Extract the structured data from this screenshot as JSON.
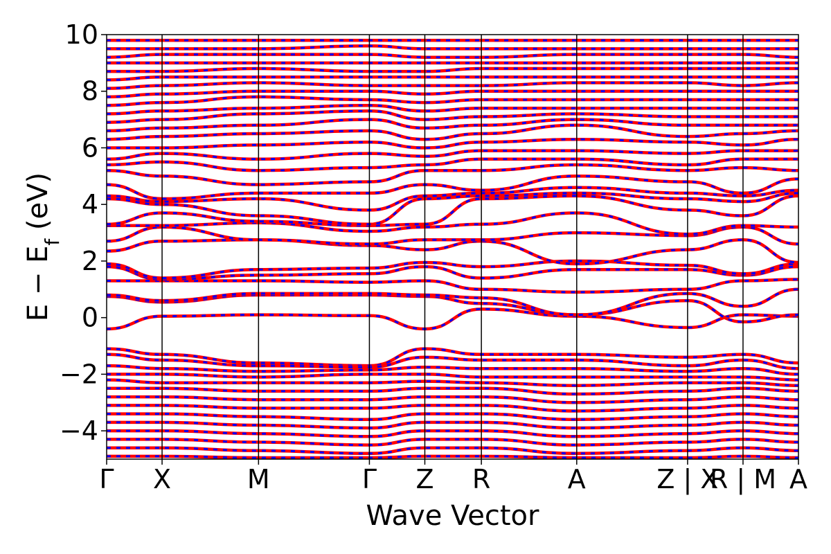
{
  "chart_data": {
    "type": "line",
    "title": "",
    "xlabel": "Wave Vector",
    "ylabel_parts": {
      "main": "E − E",
      "sub": "f",
      "tail": " (eV)"
    },
    "ylim": [
      -5,
      10
    ],
    "yticks": [
      -4,
      -2,
      0,
      2,
      4,
      6,
      8,
      10
    ],
    "ytick_labels": [
      "−4",
      "−2",
      "0",
      "2",
      "4",
      "6",
      "8",
      "10"
    ],
    "kpoints": [
      {
        "label": "Γ",
        "x": 0.0
      },
      {
        "label": "X",
        "x": 0.5
      },
      {
        "label": "M",
        "x": 1.37
      },
      {
        "label": "Γ",
        "x": 2.37
      },
      {
        "label": "Z",
        "x": 2.87
      },
      {
        "label": "R",
        "x": 3.38
      },
      {
        "label": "A",
        "x": 4.24
      },
      {
        "label": "Z | X",
        "x": 5.24
      },
      {
        "label": "R | M",
        "x": 5.74
      },
      {
        "label": "A",
        "x": 6.24
      }
    ],
    "xlim": [
      0,
      6.24
    ],
    "grid": false,
    "series": [
      {
        "color": "#ff0000",
        "style": "solid"
      },
      {
        "color": "#0000ff",
        "style": "dashed"
      }
    ],
    "bands": [
      [
        -0.4,
        0.05,
        0.1,
        0.07,
        -0.4,
        0.3,
        0.05,
        -0.35,
        0.1,
        0.05,
        -0.4
      ],
      [
        0.75,
        0.55,
        0.8,
        0.8,
        0.75,
        0.5,
        0.1,
        0.6,
        -0.15,
        0.1,
        0.65
      ],
      [
        0.8,
        0.6,
        0.85,
        0.85,
        0.8,
        0.7,
        0.1,
        0.85,
        0.4,
        1.0,
        0.85
      ],
      [
        1.3,
        1.3,
        1.3,
        1.25,
        1.3,
        1.0,
        0.9,
        1.0,
        1.3,
        1.35,
        1.3
      ],
      [
        1.8,
        1.35,
        1.5,
        1.55,
        1.8,
        1.4,
        1.7,
        1.7,
        1.5,
        1.8,
        1.8
      ],
      [
        1.9,
        1.4,
        1.7,
        1.75,
        1.95,
        1.8,
        2.0,
        1.85,
        1.55,
        1.9,
        2.1
      ],
      [
        2.35,
        2.7,
        2.75,
        2.55,
        2.4,
        2.7,
        1.9,
        2.4,
        2.75,
        1.95,
        2.55
      ],
      [
        2.7,
        3.2,
        2.75,
        2.6,
        2.75,
        2.75,
        3.0,
        2.9,
        3.2,
        2.6,
        2.95
      ],
      [
        3.25,
        3.25,
        3.35,
        3.05,
        3.2,
        3.3,
        3.7,
        2.95,
        3.25,
        3.2,
        3.3
      ],
      [
        3.3,
        3.7,
        3.4,
        3.25,
        3.3,
        4.2,
        4.3,
        3.8,
        3.6,
        4.3,
        3.8
      ],
      [
        4.2,
        4.0,
        3.6,
        3.3,
        4.2,
        4.3,
        4.4,
        4.2,
        4.1,
        4.4,
        4.2
      ],
      [
        4.3,
        4.1,
        4.2,
        3.8,
        4.3,
        4.4,
        4.6,
        4.4,
        4.3,
        4.5,
        4.3
      ],
      [
        4.7,
        4.2,
        4.4,
        4.4,
        4.7,
        4.5,
        5.0,
        4.8,
        4.4,
        4.9,
        4.9
      ],
      [
        5.2,
        5.0,
        4.7,
        4.8,
        5.2,
        5.2,
        5.4,
        5.2,
        5.3,
        5.2,
        5.4
      ],
      [
        5.4,
        5.5,
        5.2,
        5.3,
        5.4,
        5.6,
        5.6,
        5.4,
        5.6,
        5.6,
        5.6
      ],
      [
        5.6,
        5.8,
        5.6,
        5.8,
        5.7,
        5.9,
        5.9,
        5.8,
        5.9,
        5.9,
        5.9
      ],
      [
        6.0,
        6.0,
        6.1,
        6.2,
        6.0,
        6.2,
        6.3,
        6.2,
        6.1,
        6.3,
        6.2
      ],
      [
        6.3,
        6.4,
        6.5,
        6.6,
        6.3,
        6.5,
        6.8,
        6.4,
        6.5,
        6.6,
        6.6
      ],
      [
        6.6,
        6.7,
        6.8,
        7.0,
        6.7,
        6.8,
        7.0,
        6.8,
        6.8,
        6.8,
        6.8
      ],
      [
        6.9,
        7.0,
        7.2,
        7.3,
        7.0,
        7.1,
        7.2,
        7.1,
        7.1,
        7.1,
        7.1
      ],
      [
        7.2,
        7.3,
        7.4,
        7.5,
        7.3,
        7.4,
        7.4,
        7.4,
        7.4,
        7.4,
        7.4
      ],
      [
        7.5,
        7.6,
        7.8,
        7.7,
        7.6,
        7.7,
        7.7,
        7.7,
        7.7,
        7.7,
        7.7
      ],
      [
        7.8,
        7.9,
        8.0,
        8.0,
        7.9,
        8.0,
        8.0,
        8.0,
        8.0,
        8.0,
        8.0
      ],
      [
        8.1,
        8.2,
        8.3,
        8.2,
        8.2,
        8.2,
        8.3,
        8.3,
        8.2,
        8.3,
        8.3
      ],
      [
        8.4,
        8.5,
        8.5,
        8.5,
        8.5,
        8.5,
        8.5,
        8.5,
        8.5,
        8.5,
        8.5
      ],
      [
        8.7,
        8.7,
        8.8,
        8.7,
        8.7,
        8.8,
        8.8,
        8.8,
        8.8,
        8.8,
        8.8
      ],
      [
        9.0,
        9.0,
        9.0,
        9.0,
        9.0,
        9.0,
        9.0,
        9.0,
        9.0,
        9.0,
        9.0
      ],
      [
        9.2,
        9.3,
        9.3,
        9.3,
        9.2,
        9.2,
        9.3,
        9.3,
        9.3,
        9.2,
        9.3
      ],
      [
        9.5,
        9.5,
        9.5,
        9.6,
        9.5,
        9.5,
        9.5,
        9.5,
        9.5,
        9.5,
        9.5
      ],
      [
        9.8,
        9.8,
        9.8,
        9.8,
        9.8,
        9.8,
        9.8,
        9.8,
        9.8,
        9.8,
        9.8
      ],
      [
        -1.1,
        -1.3,
        -1.6,
        -1.7,
        -1.1,
        -1.3,
        -1.3,
        -1.4,
        -1.3,
        -1.6,
        -1.3
      ],
      [
        -1.3,
        -1.5,
        -1.7,
        -1.75,
        -1.4,
        -1.5,
        -1.5,
        -1.7,
        -1.5,
        -1.8,
        -1.6
      ],
      [
        -1.7,
        -1.8,
        -1.9,
        -1.85,
        -1.75,
        -1.8,
        -1.8,
        -1.9,
        -1.8,
        -2.0,
        -1.9
      ],
      [
        -2.0,
        -2.0,
        -2.1,
        -2.0,
        -2.0,
        -2.1,
        -2.1,
        -2.1,
        -2.1,
        -2.2,
        -2.1
      ],
      [
        -2.2,
        -2.3,
        -2.3,
        -2.3,
        -2.25,
        -2.3,
        -2.4,
        -2.3,
        -2.3,
        -2.4,
        -2.3
      ],
      [
        -2.5,
        -2.5,
        -2.6,
        -2.6,
        -2.5,
        -2.5,
        -2.7,
        -2.6,
        -2.5,
        -2.6,
        -2.6
      ],
      [
        -2.8,
        -2.8,
        -2.9,
        -2.9,
        -2.8,
        -2.8,
        -3.0,
        -2.9,
        -2.8,
        -2.9,
        -2.9
      ],
      [
        -3.1,
        -3.1,
        -3.2,
        -3.2,
        -3.1,
        -3.1,
        -3.3,
        -3.2,
        -3.1,
        -3.2,
        -3.1
      ],
      [
        -3.4,
        -3.4,
        -3.5,
        -3.6,
        -3.4,
        -3.4,
        -3.6,
        -3.5,
        -3.4,
        -3.5,
        -3.4
      ],
      [
        -3.7,
        -3.7,
        -3.8,
        -3.9,
        -3.7,
        -3.7,
        -3.9,
        -3.8,
        -3.7,
        -3.8,
        -3.7
      ],
      [
        -4.0,
        -4.0,
        -4.1,
        -4.2,
        -4.0,
        -4.0,
        -4.2,
        -4.1,
        -4.0,
        -4.1,
        -4.0
      ],
      [
        -4.3,
        -4.3,
        -4.4,
        -4.5,
        -4.3,
        -4.3,
        -4.5,
        -4.4,
        -4.3,
        -4.4,
        -4.3
      ],
      [
        -4.6,
        -4.6,
        -4.7,
        -4.8,
        -4.6,
        -4.6,
        -4.8,
        -4.7,
        -4.6,
        -4.7,
        -4.6
      ],
      [
        -4.9,
        -4.9,
        -4.95,
        -4.95,
        -4.9,
        -4.9,
        -4.95,
        -4.95,
        -4.9,
        -4.95,
        -4.9
      ]
    ]
  }
}
